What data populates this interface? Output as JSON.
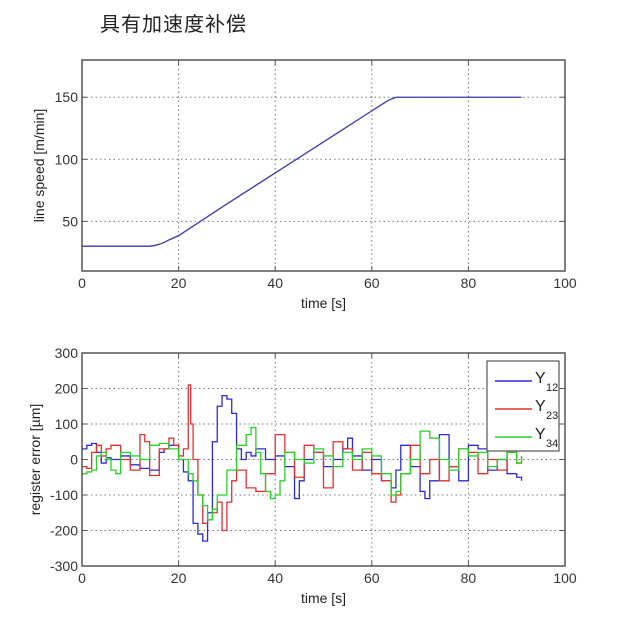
{
  "page": {
    "title": "具有加速度补偿"
  },
  "chart_data": [
    {
      "type": "line",
      "title": "",
      "xlabel": "time [s]",
      "ylabel": "line speed [m/min]",
      "xlim": [
        0,
        100
      ],
      "ylim": [
        10,
        180
      ],
      "xticks": [
        0,
        20,
        40,
        60,
        80,
        100
      ],
      "yticks": [
        50,
        100,
        150
      ],
      "grid": true,
      "legend": null,
      "series": [
        {
          "name": "line speed",
          "color": "#3a3aa8",
          "x": [
            0,
            14,
            15,
            16,
            17,
            18,
            20,
            30,
            40,
            50,
            60,
            62,
            63,
            64,
            65,
            70,
            80,
            91
          ],
          "y": [
            30,
            30,
            30.5,
            31.5,
            33,
            35,
            38.5,
            64,
            89,
            114,
            139,
            144,
            146.5,
            148.5,
            150,
            150,
            150,
            150
          ]
        }
      ]
    },
    {
      "type": "line",
      "title": "",
      "xlabel": "time [s]",
      "ylabel": "register error [µm]",
      "xlim": [
        0,
        100
      ],
      "ylim": [
        -300,
        300
      ],
      "xticks": [
        0,
        20,
        40,
        60,
        80,
        100
      ],
      "yticks": [
        -300,
        -200,
        -100,
        0,
        100,
        200,
        300
      ],
      "grid": true,
      "legend_position": "upper right",
      "legend": [
        "Y12",
        "Y23",
        "Y34"
      ],
      "series": [
        {
          "name": "Y12",
          "label_main": "Y",
          "label_sub": "12",
          "color": "#2b2bd6",
          "x": [
            0,
            1,
            2,
            3,
            4,
            5,
            6,
            8,
            10,
            12,
            14,
            16,
            17,
            18,
            20,
            21,
            22,
            23,
            24,
            25,
            26,
            27,
            28,
            29,
            30,
            31,
            32,
            33,
            34,
            35,
            36,
            38,
            40,
            42,
            44,
            45,
            46,
            48,
            50,
            52,
            54,
            55,
            56,
            58,
            60,
            62,
            64,
            65,
            66,
            68,
            70,
            71,
            72,
            74,
            76,
            78,
            80,
            82,
            84,
            86,
            88,
            90,
            91
          ],
          "y": [
            30,
            40,
            45,
            20,
            -10,
            5,
            0,
            10,
            -15,
            -25,
            -30,
            20,
            30,
            40,
            0,
            -35,
            -60,
            -180,
            -210,
            -230,
            -150,
            50,
            150,
            180,
            170,
            130,
            30,
            0,
            20,
            10,
            30,
            0,
            10,
            -20,
            -110,
            -60,
            0,
            20,
            -20,
            0,
            30,
            60,
            10,
            -30,
            0,
            -60,
            -80,
            -30,
            40,
            -20,
            -90,
            -110,
            -60,
            70,
            -20,
            -60,
            40,
            30,
            -30,
            0,
            -40,
            -50,
            -60
          ]
        },
        {
          "name": "Y23",
          "label_main": "Y",
          "label_sub": "23",
          "color": "#e03030",
          "x": [
            0,
            1,
            2,
            3,
            4,
            5,
            6,
            8,
            10,
            12,
            13,
            14,
            16,
            18,
            19,
            20,
            21,
            22,
            22.5,
            23,
            24,
            25,
            26,
            27,
            28,
            29,
            30,
            31,
            32,
            34,
            36,
            38,
            40,
            42,
            44,
            46,
            48,
            50,
            52,
            54,
            56,
            58,
            60,
            62,
            64,
            65,
            66,
            68,
            70,
            72,
            74,
            76,
            78,
            80,
            82,
            84,
            86,
            88,
            90,
            91
          ],
          "y": [
            -20,
            -25,
            20,
            40,
            10,
            30,
            40,
            0,
            -30,
            70,
            50,
            -45,
            30,
            60,
            40,
            10,
            30,
            210,
            100,
            0,
            -100,
            -180,
            -170,
            -150,
            -120,
            -200,
            -120,
            -60,
            -30,
            -80,
            -90,
            -40,
            70,
            20,
            -50,
            40,
            20,
            -80,
            50,
            30,
            -30,
            20,
            -40,
            -60,
            -120,
            -100,
            -40,
            40,
            -40,
            0,
            -60,
            -20,
            30,
            20,
            -40,
            0,
            -30,
            20,
            -10,
            10
          ]
        },
        {
          "name": "Y34",
          "label_main": "Y",
          "label_sub": "34",
          "color": "#28d028",
          "x": [
            0,
            1,
            2,
            3,
            4,
            5,
            6,
            7,
            8,
            10,
            12,
            14,
            16,
            18,
            20,
            22,
            23,
            24,
            25,
            26,
            27,
            28,
            30,
            32,
            34,
            35,
            36,
            37,
            38,
            39,
            40,
            41,
            42,
            44,
            46,
            48,
            50,
            52,
            54,
            56,
            58,
            60,
            62,
            64,
            65,
            66,
            68,
            70,
            72,
            74,
            76,
            78,
            80,
            82,
            84,
            86,
            88,
            90,
            91
          ],
          "y": [
            -40,
            -35,
            -30,
            10,
            20,
            0,
            -30,
            -40,
            20,
            10,
            0,
            40,
            45,
            30,
            0,
            -40,
            -60,
            -100,
            -130,
            -170,
            -140,
            -100,
            -30,
            40,
            70,
            90,
            20,
            -40,
            -90,
            -110,
            -100,
            -60,
            20,
            0,
            -10,
            30,
            10,
            -20,
            20,
            0,
            30,
            10,
            -40,
            -100,
            -90,
            -40,
            0,
            80,
            60,
            0,
            -30,
            30,
            10,
            20,
            -20,
            0,
            20,
            -10,
            10
          ]
        }
      ]
    }
  ]
}
